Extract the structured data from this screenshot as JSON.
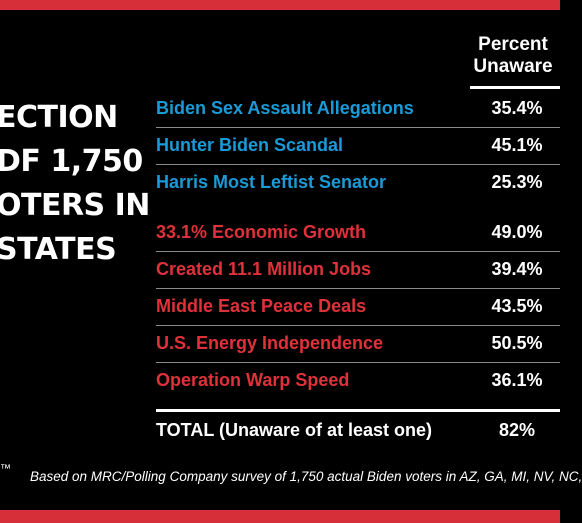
{
  "left_block": {
    "lines": [
      "ECTION",
      "DF 1,750",
      "OTERS IN",
      "STATES"
    ]
  },
  "chart_data": {
    "type": "table",
    "column_header": [
      "Percent",
      "Unaware"
    ],
    "rows": [
      {
        "label": "Biden Sex Assault Allegations",
        "value": "35.4%",
        "color": "#1a9ad6"
      },
      {
        "label": "Hunter Biden Scandal",
        "value": "45.1%",
        "color": "#1a9ad6"
      },
      {
        "label": "Harris Most Leftist Senator",
        "value": "25.3%",
        "color": "#1a9ad6"
      },
      {
        "label": "33.1% Economic Growth",
        "value": "49.0%",
        "color": "#e0313b"
      },
      {
        "label": "Created 11.1 Million Jobs",
        "value": "39.4%",
        "color": "#e0313b"
      },
      {
        "label": "Middle East Peace Deals",
        "value": "43.5%",
        "color": "#e0313b"
      },
      {
        "label": "U.S. Energy Independence",
        "value": "50.5%",
        "color": "#e0313b"
      },
      {
        "label": "Operation Warp Speed",
        "value": "36.1%",
        "color": "#e0313b"
      }
    ],
    "total": {
      "label_bold": "TOTAL",
      "label_rest": " (Unaware of at least one)",
      "value": "82%"
    }
  },
  "footnote": "Based on MRC/Polling Company survey of 1,750 actual Biden voters in AZ, GA, MI, NV, NC,",
  "trademark": "™",
  "colors": {
    "band": "#d62f3a",
    "blue": "#1a9ad6",
    "red": "#e0313b"
  }
}
